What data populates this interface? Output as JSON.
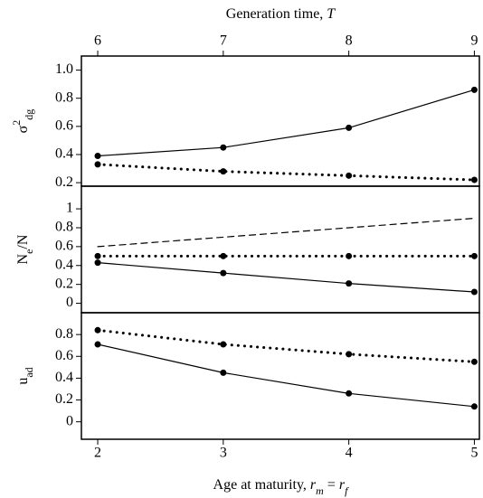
{
  "chart_data": {
    "type": "line",
    "x": [
      2,
      3,
      4,
      5
    ],
    "xlim": [
      1.87,
      5.04
    ],
    "xticks": [
      2,
      3,
      4,
      5
    ],
    "x2lim": [
      5.87,
      9.04
    ],
    "x2ticks": [
      6,
      7,
      8,
      9
    ],
    "xlabel": [
      {
        "text": "Age at maturity, "
      },
      {
        "text": "r",
        "italic": true
      },
      {
        "text": "m",
        "italic": true,
        "sub": true
      },
      {
        "text": " = "
      },
      {
        "text": "r",
        "italic": true
      },
      {
        "text": "f",
        "italic": true,
        "sub": true
      }
    ],
    "x2label": [
      {
        "text": "Generation time, "
      },
      {
        "text": "T",
        "italic": true
      }
    ],
    "panels": [
      {
        "ylabel": [
          {
            "text": "σ"
          },
          {
            "text": "2",
            "sup": true
          },
          {
            "text": "dg",
            "sub": true
          }
        ],
        "ylim": [
          0.175,
          1.1
        ],
        "yticks": [
          {
            "value": 1,
            "label": "1.0"
          },
          0.8,
          0.6,
          0.4,
          0.2
        ],
        "series": [
          {
            "color": "#000000",
            "style": "solid",
            "markers": true,
            "values": [
              0.39,
              0.45,
              0.59,
              0.86
            ]
          },
          {
            "color": "#000000",
            "style": "dotted",
            "markers": true,
            "values": [
              0.33,
              0.28,
              0.25,
              0.22
            ]
          }
        ]
      },
      {
        "ylabel": [
          {
            "text": "N"
          },
          {
            "text": "e",
            "sub": true
          },
          {
            "text": "/N"
          }
        ],
        "ylim": [
          -0.1,
          1.24
        ],
        "yticks": [
          1,
          0.8,
          0.6,
          0.4,
          0.2,
          0
        ],
        "series": [
          {
            "color": "#000000",
            "style": "dashed",
            "markers": false,
            "values": [
              0.6,
              0.7,
              0.8,
              0.9
            ]
          },
          {
            "color": "#000000",
            "style": "dotted",
            "markers": true,
            "values": [
              0.5,
              0.5,
              0.5,
              0.5
            ]
          },
          {
            "color": "#000000",
            "style": "solid",
            "markers": true,
            "values": [
              0.43,
              0.32,
              0.21,
              0.12
            ]
          }
        ]
      },
      {
        "ylabel": [
          {
            "text": "u"
          },
          {
            "text": "ad",
            "sub": true
          }
        ],
        "ylim": [
          -0.16,
          1.0
        ],
        "yticks": [
          0.8,
          0.6,
          0.4,
          0.2,
          0
        ],
        "series": [
          {
            "color": "#000000",
            "style": "dotted",
            "markers": true,
            "values": [
              0.84,
              0.71,
              0.62,
              0.55
            ]
          },
          {
            "color": "#000000",
            "style": "solid",
            "markers": true,
            "values": [
              0.71,
              0.45,
              0.26,
              0.14
            ]
          }
        ]
      }
    ]
  }
}
